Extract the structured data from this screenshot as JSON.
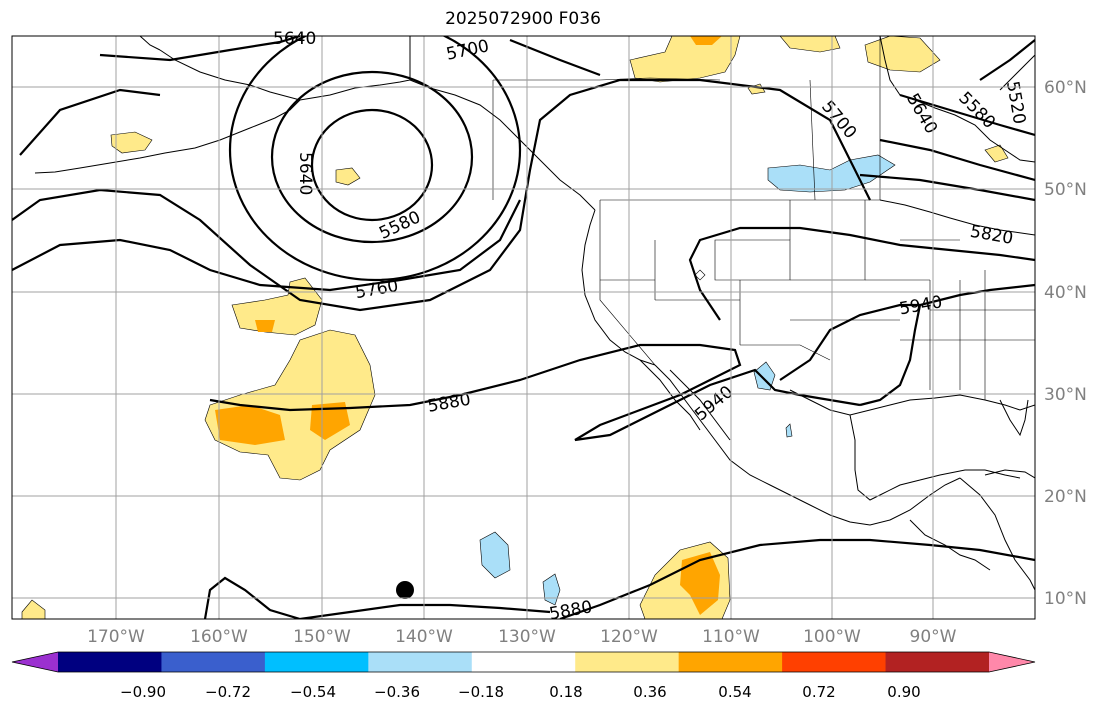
{
  "title": "2025072900 F036",
  "axes": {
    "lon_labels": [
      "170°W",
      "160°W",
      "150°W",
      "140°W",
      "130°W",
      "120°W",
      "110°W",
      "100°W",
      "90°W"
    ],
    "lat_labels": [
      "60°N",
      "50°N",
      "40°N",
      "30°N",
      "20°N",
      "10°N"
    ]
  },
  "contour_labels": [
    "5640",
    "5700",
    "5640",
    "5580",
    "5760",
    "5880",
    "5940",
    "5940",
    "5700",
    "5640",
    "5580",
    "5520",
    "5820",
    "5880"
  ],
  "colorbar": {
    "ticks": [
      "−0.90",
      "−0.72",
      "−0.54",
      "−0.36",
      "−0.18",
      "0.18",
      "0.36",
      "0.54",
      "0.72",
      "0.90"
    ],
    "colors": [
      "#9b30d0",
      "#000080",
      "#3a5fcd",
      "#00bfff",
      "#aadff8",
      "#ffffff",
      "#ffea8a",
      "#ffa500",
      "#ff4000",
      "#b22222",
      "#ff88aa"
    ]
  },
  "colors": {
    "positive_light": "#ffea8a",
    "positive_medium": "#ffa500",
    "negative_light": "#aadff8"
  }
}
